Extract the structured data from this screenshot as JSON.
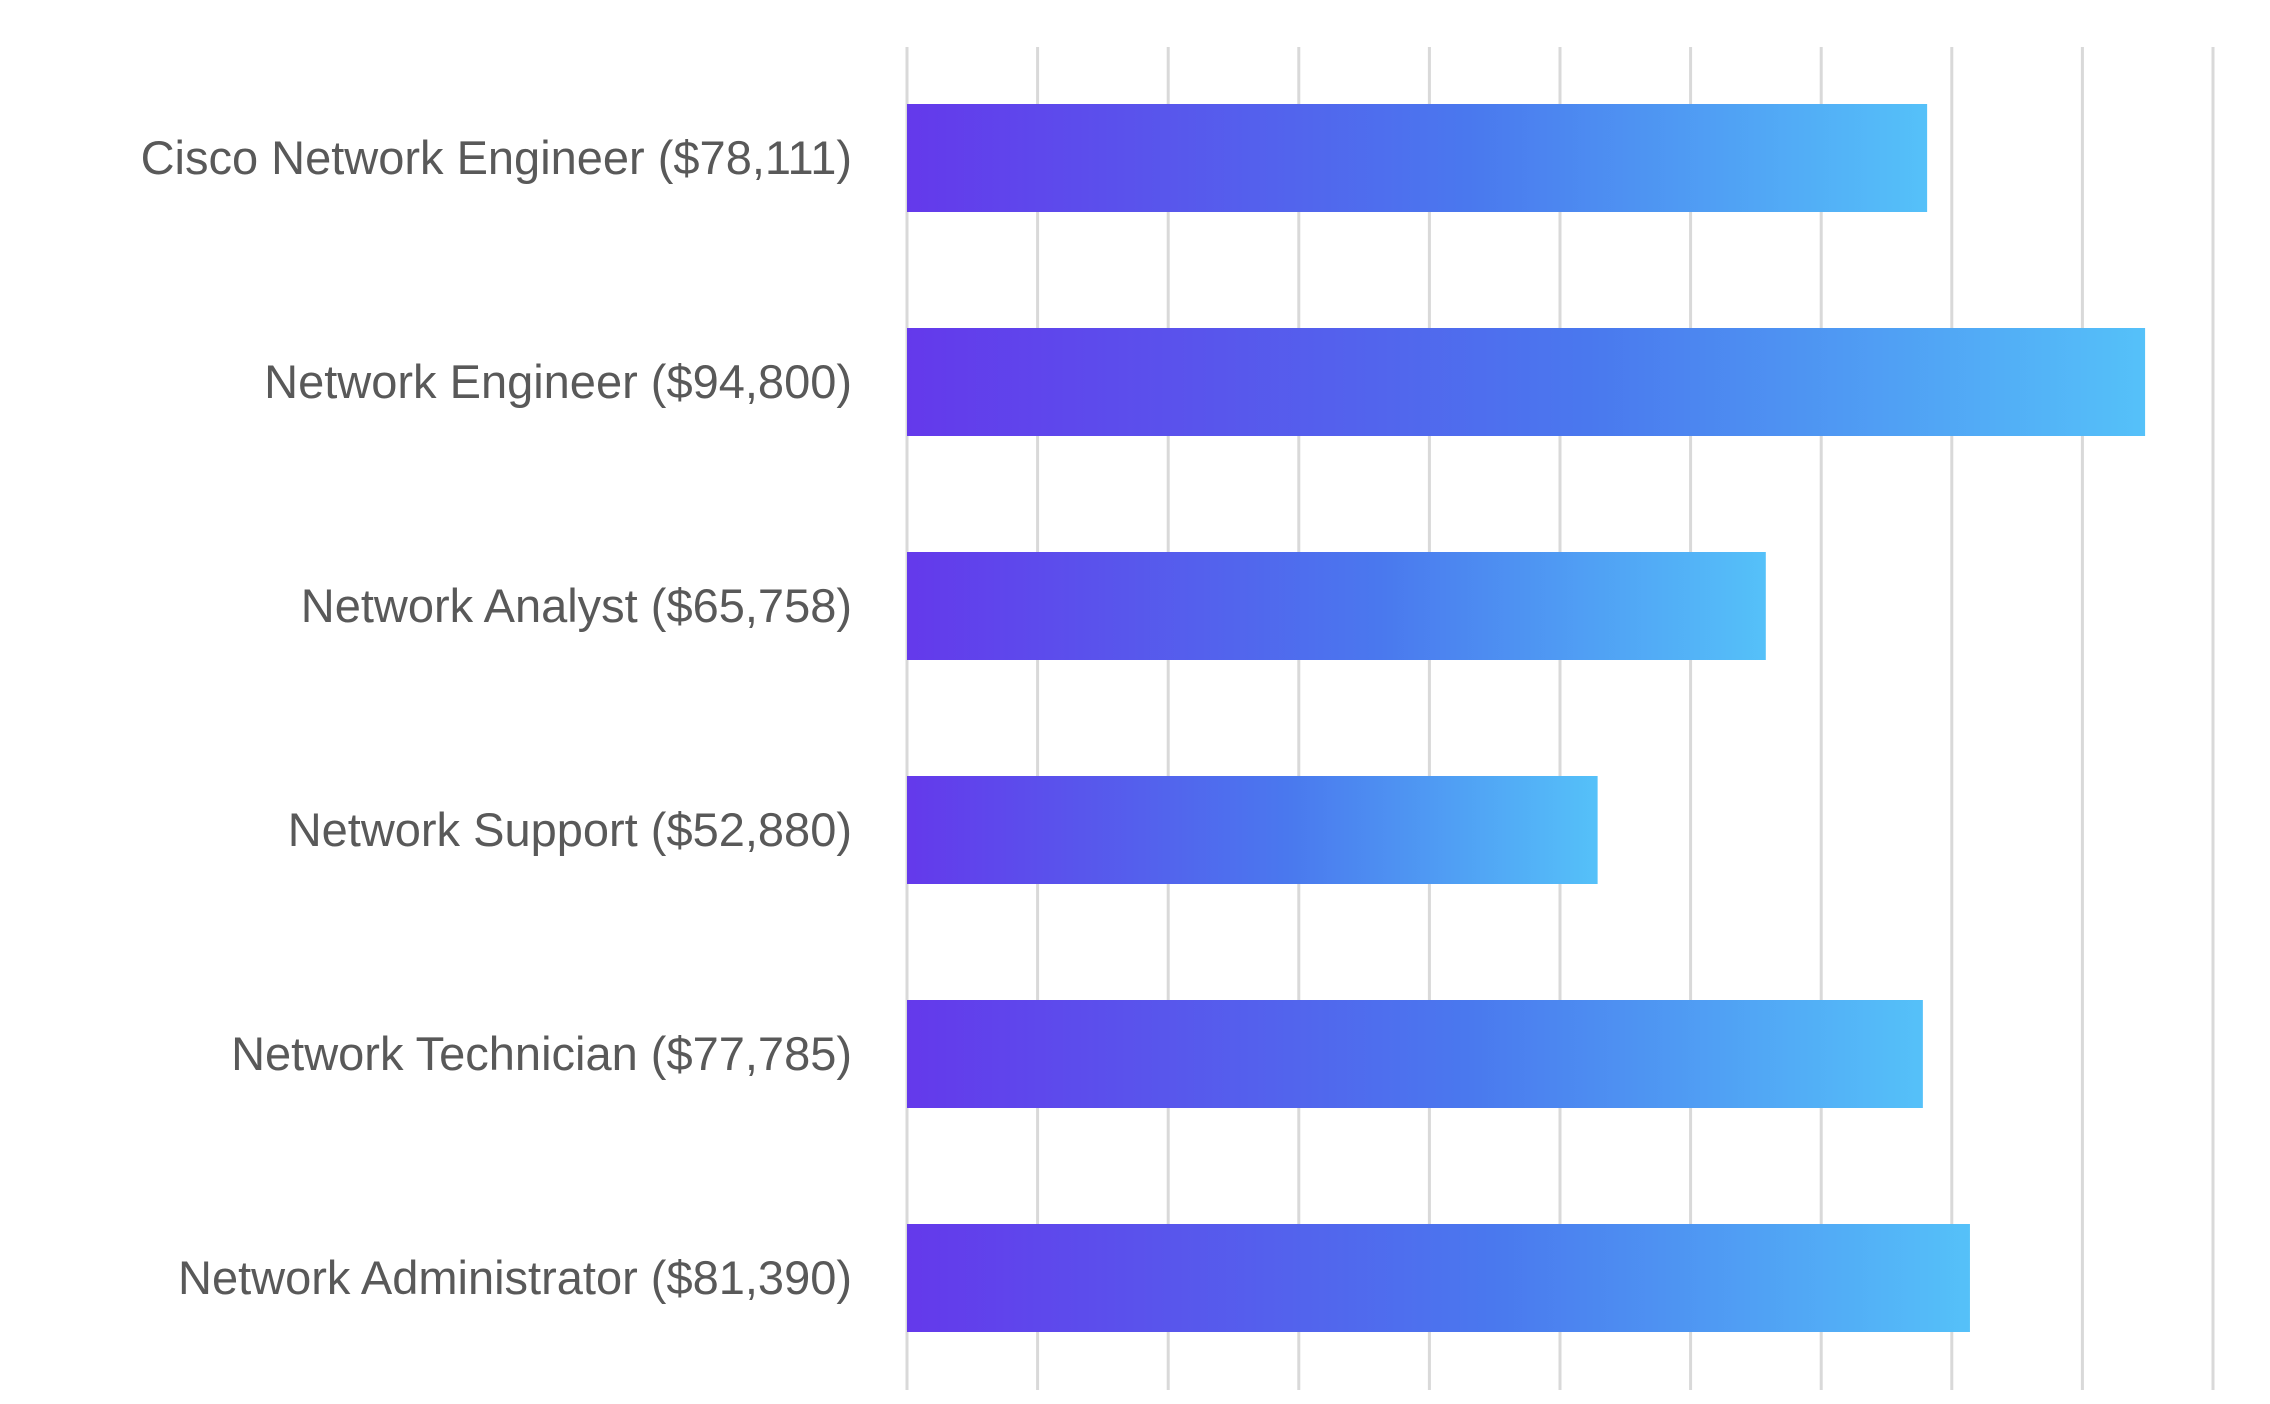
{
  "chart_data": {
    "type": "bar",
    "orientation": "horizontal",
    "title": "",
    "xlabel": "",
    "ylabel": "",
    "categories": [
      "Cisco Network Engineer ($78,111)",
      "Network Engineer ($94,800)",
      "Network Analyst ($65,758)",
      "Network Support ($52,880)",
      "Network Technician ($77,785)",
      "Network Administrator ($81,390)"
    ],
    "values": [
      78111,
      94800,
      65758,
      52880,
      77785,
      81390
    ],
    "xlim": [
      0,
      100000
    ],
    "x_grid_step": 10000,
    "grid": true,
    "x_tick_labels_shown": false,
    "legend": "none",
    "colors": {
      "gradient_start": "#6439EB",
      "gradient_end": "#55C1F9",
      "grid": "#D9D9D9",
      "label": "#595959"
    }
  }
}
